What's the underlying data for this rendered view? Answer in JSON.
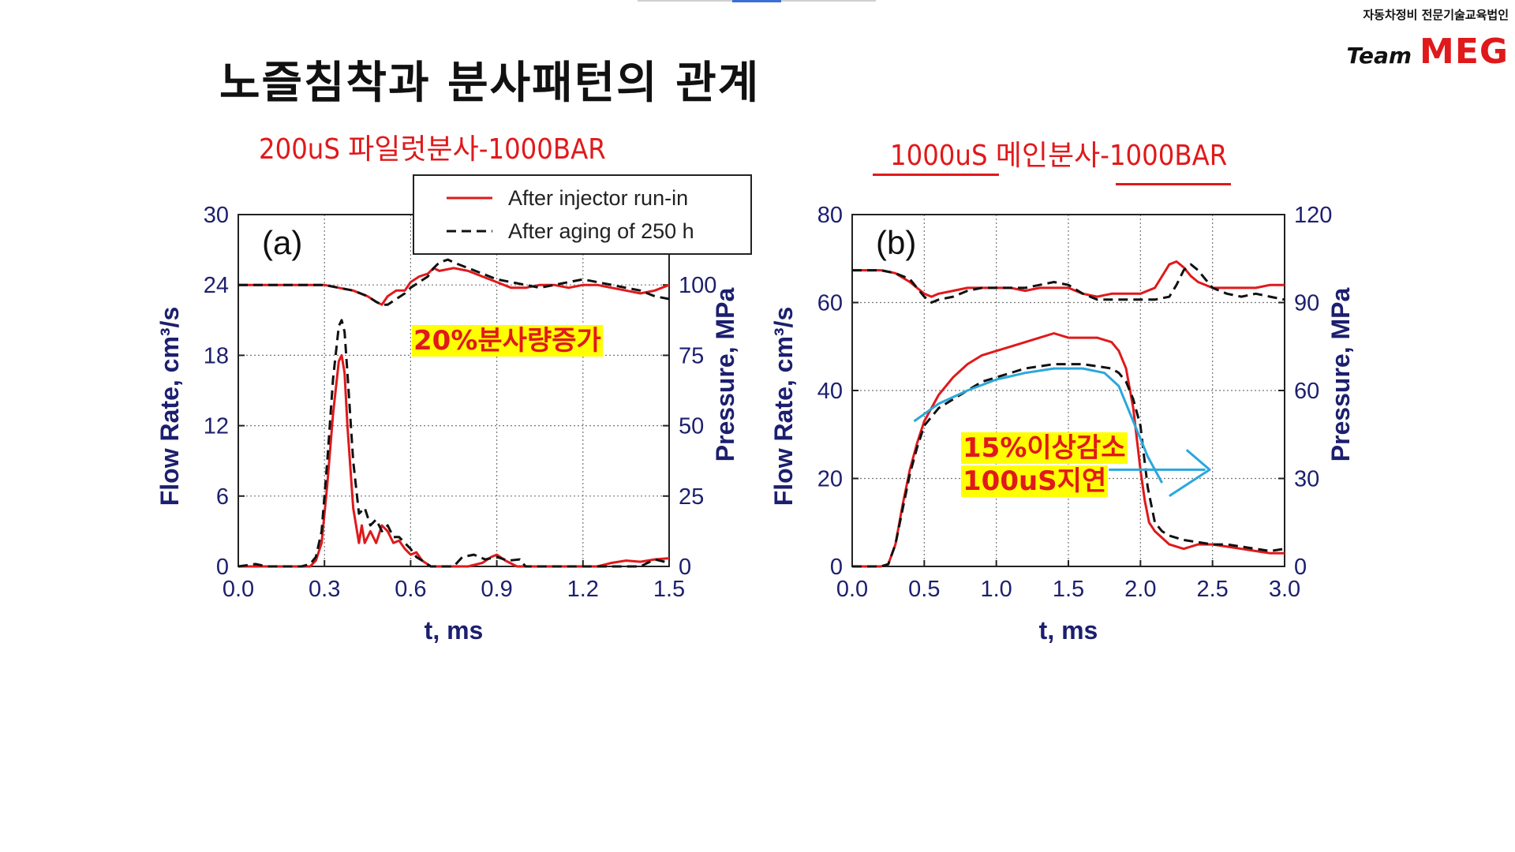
{
  "header": {
    "org": "자동차정비 전문기술교육법인",
    "logo_team": "Team",
    "logo_meg": "MEG",
    "title": "노즐침착과 분사패턴의 관계"
  },
  "subtitles": {
    "a": "200uS 파일럿분사-1000BAR",
    "b": "1000uS 메인분사-1000BAR"
  },
  "annotations": {
    "a": "20%분사량증가",
    "b_line1": "15%이상감소",
    "b_line2": "100uS지연"
  },
  "colors": {
    "red": "#e0191b",
    "black": "#111111",
    "navy": "#1c1f6e",
    "highlight": "#ffff00",
    "cyan": "#2aa7dc"
  },
  "chart_data": [
    {
      "type": "line",
      "panel_label": "(a)",
      "xlabel": "t, ms",
      "ylabel": "Flow Rate, cm³/s",
      "ylabel2": "Pressure, MPa",
      "xlim": [
        0,
        1.5
      ],
      "ylim": [
        0,
        30
      ],
      "y2lim": [
        0,
        125
      ],
      "xticks": [
        "0.0",
        "0.3",
        "0.6",
        "0.9",
        "1.2",
        "1.5"
      ],
      "yticks": [
        "0",
        "6",
        "12",
        "18",
        "24",
        "30"
      ],
      "y2ticks": [
        "0",
        "25",
        "50",
        "75",
        "100"
      ],
      "grid": true,
      "legend": {
        "placement": "top-right",
        "entries": [
          "After injector run-in",
          "After aging of 250 h"
        ]
      },
      "series": [
        {
          "name": "After injector run-in",
          "style": "solid",
          "color": "#e0191b",
          "kind": "flow",
          "x": [
            0.0,
            0.06,
            0.1,
            0.14,
            0.18,
            0.22,
            0.25,
            0.27,
            0.29,
            0.31,
            0.33,
            0.35,
            0.36,
            0.37,
            0.38,
            0.4,
            0.42,
            0.43,
            0.44,
            0.46,
            0.48,
            0.5,
            0.52,
            0.54,
            0.56,
            0.58,
            0.6,
            0.62,
            0.64,
            0.67,
            0.7,
            0.75,
            0.8,
            0.85,
            0.88,
            0.9,
            0.93,
            0.97,
            1.0,
            1.05,
            1.1,
            1.15,
            1.2,
            1.25,
            1.3,
            1.35,
            1.4,
            1.45,
            1.5
          ],
          "y": [
            0,
            0,
            0,
            0,
            0,
            0,
            0,
            0.5,
            2.0,
            7.0,
            13.0,
            17.5,
            18.0,
            16.5,
            12.0,
            5.0,
            2.0,
            3.5,
            2.0,
            3.0,
            2.0,
            3.5,
            3.0,
            2.0,
            2.2,
            1.5,
            1.0,
            1.2,
            0.5,
            0,
            0,
            0,
            0,
            0.3,
            0.8,
            1.0,
            0.5,
            0,
            0,
            0,
            0,
            0,
            0,
            0,
            0.3,
            0.5,
            0.4,
            0.6,
            0.7
          ]
        },
        {
          "name": "After aging of 250 h",
          "style": "dashed",
          "color": "#111111",
          "kind": "flow",
          "x": [
            0.0,
            0.06,
            0.1,
            0.14,
            0.18,
            0.22,
            0.25,
            0.27,
            0.29,
            0.31,
            0.33,
            0.35,
            0.36,
            0.37,
            0.38,
            0.4,
            0.42,
            0.44,
            0.46,
            0.48,
            0.5,
            0.52,
            0.54,
            0.56,
            0.58,
            0.6,
            0.62,
            0.64,
            0.67,
            0.7,
            0.75,
            0.78,
            0.82,
            0.86,
            0.9,
            0.94,
            0.98,
            1.0,
            1.05,
            1.1,
            1.2,
            1.3,
            1.4,
            1.45,
            1.5
          ],
          "y": [
            0,
            0.2,
            0,
            0,
            0,
            0,
            0.2,
            0.8,
            3.0,
            9.0,
            16.0,
            20.5,
            21.0,
            20.0,
            16.5,
            9.0,
            4.5,
            5.0,
            3.5,
            4.0,
            3.0,
            3.5,
            2.5,
            2.5,
            2.0,
            1.5,
            0.8,
            0.5,
            0,
            0,
            0,
            0.8,
            1.0,
            0.6,
            0.8,
            0.5,
            0.6,
            0,
            0,
            0,
            0,
            0,
            0,
            0.6,
            0.3
          ]
        },
        {
          "name": "After injector run-in",
          "style": "solid",
          "color": "#e0191b",
          "kind": "pressure",
          "x": [
            0.0,
            0.1,
            0.2,
            0.3,
            0.35,
            0.4,
            0.45,
            0.48,
            0.5,
            0.52,
            0.55,
            0.58,
            0.6,
            0.63,
            0.66,
            0.68,
            0.7,
            0.75,
            0.8,
            0.85,
            0.9,
            0.95,
            1.0,
            1.05,
            1.1,
            1.15,
            1.2,
            1.25,
            1.3,
            1.35,
            1.4,
            1.45,
            1.5
          ],
          "y": [
            100,
            100,
            100,
            100,
            99,
            98,
            96,
            94,
            93,
            96,
            98,
            98,
            101,
            103,
            104,
            106,
            105,
            106,
            105,
            103,
            101,
            99,
            99,
            100,
            100,
            99,
            100,
            100,
            99,
            98,
            97,
            98,
            100
          ]
        },
        {
          "name": "After aging of 250 h",
          "style": "dashed",
          "color": "#111111",
          "kind": "pressure",
          "x": [
            0.0,
            0.1,
            0.2,
            0.3,
            0.35,
            0.4,
            0.45,
            0.48,
            0.5,
            0.52,
            0.55,
            0.58,
            0.6,
            0.63,
            0.66,
            0.68,
            0.7,
            0.73,
            0.75,
            0.8,
            0.85,
            0.9,
            0.95,
            1.0,
            1.05,
            1.1,
            1.15,
            1.2,
            1.25,
            1.3,
            1.35,
            1.4,
            1.45,
            1.5
          ],
          "y": [
            100,
            100,
            100,
            100,
            99,
            98,
            96,
            94,
            93,
            93,
            95,
            97,
            99,
            101,
            103,
            106,
            108,
            109,
            108,
            106,
            104,
            102,
            101,
            100,
            99,
            100,
            101,
            102,
            101,
            100,
            99,
            98,
            96,
            95
          ]
        }
      ]
    },
    {
      "type": "line",
      "panel_label": "(b)",
      "xlabel": "t, ms",
      "ylabel": "Flow Rate, cm³/s",
      "ylabel2": "Pressure, MPa",
      "xlim": [
        0,
        3.0
      ],
      "ylim": [
        0,
        80
      ],
      "y2lim": [
        0,
        120
      ],
      "xticks": [
        "0.0",
        "0.5",
        "1.0",
        "1.5",
        "2.0",
        "2.5",
        "3.0"
      ],
      "yticks": [
        "0",
        "20",
        "40",
        "60",
        "80"
      ],
      "y2ticks": [
        "0",
        "30",
        "60",
        "90",
        "120"
      ],
      "grid": true,
      "series": [
        {
          "name": "After injector run-in",
          "style": "solid",
          "color": "#e0191b",
          "kind": "flow",
          "x": [
            0.0,
            0.1,
            0.2,
            0.25,
            0.3,
            0.35,
            0.4,
            0.45,
            0.5,
            0.6,
            0.7,
            0.8,
            0.9,
            1.0,
            1.1,
            1.2,
            1.3,
            1.4,
            1.5,
            1.6,
            1.7,
            1.8,
            1.85,
            1.9,
            1.95,
            2.0,
            2.03,
            2.06,
            2.1,
            2.2,
            2.3,
            2.4,
            2.5,
            2.6,
            2.7,
            2.8,
            2.9,
            3.0
          ],
          "y": [
            0,
            0,
            0,
            0.5,
            5,
            14,
            22,
            28,
            33,
            39,
            43,
            46,
            48,
            49,
            50,
            51,
            52,
            53,
            52,
            52,
            52,
            51,
            49,
            45,
            36,
            22,
            15,
            10,
            8,
            5,
            4,
            5,
            5,
            4.5,
            4,
            3.5,
            3,
            3
          ]
        },
        {
          "name": "After aging of 250 h",
          "style": "dashed",
          "color": "#111111",
          "kind": "flow",
          "x": [
            0.0,
            0.1,
            0.2,
            0.25,
            0.3,
            0.35,
            0.4,
            0.45,
            0.5,
            0.6,
            0.7,
            0.8,
            0.9,
            1.0,
            1.1,
            1.2,
            1.3,
            1.4,
            1.5,
            1.6,
            1.7,
            1.8,
            1.85,
            1.9,
            1.95,
            2.0,
            2.05,
            2.1,
            2.15,
            2.2,
            2.3,
            2.4,
            2.5,
            2.6,
            2.7,
            2.8,
            2.9,
            3.0
          ],
          "y": [
            0,
            0,
            0,
            0.5,
            5,
            13,
            21,
            27,
            32,
            36,
            38,
            40,
            42,
            43,
            44,
            45,
            45.5,
            46,
            46,
            46,
            45.5,
            45,
            44,
            42,
            38,
            32,
            18,
            10,
            8,
            7,
            6,
            5.5,
            5,
            5,
            4.5,
            4,
            3.5,
            4
          ]
        },
        {
          "name": "After injector run-in",
          "style": "solid",
          "color": "#e0191b",
          "kind": "pressure",
          "x": [
            0.0,
            0.2,
            0.3,
            0.4,
            0.5,
            0.55,
            0.6,
            0.7,
            0.8,
            0.9,
            1.0,
            1.1,
            1.2,
            1.3,
            1.4,
            1.5,
            1.6,
            1.7,
            1.8,
            1.9,
            2.0,
            2.1,
            2.15,
            2.2,
            2.25,
            2.3,
            2.35,
            2.4,
            2.5,
            2.6,
            2.7,
            2.8,
            2.9,
            3.0
          ],
          "y": [
            101,
            101,
            100,
            97,
            93,
            92,
            93,
            94,
            95,
            95,
            95,
            95,
            94,
            95,
            95,
            95,
            93,
            92,
            93,
            93,
            93,
            95,
            99,
            103,
            104,
            102,
            99,
            97,
            95,
            95,
            95,
            95,
            96,
            96
          ]
        },
        {
          "name": "After aging of 250 h",
          "style": "dashed",
          "color": "#111111",
          "kind": "pressure",
          "x": [
            0.0,
            0.2,
            0.3,
            0.4,
            0.5,
            0.55,
            0.6,
            0.7,
            0.8,
            0.9,
            1.0,
            1.1,
            1.2,
            1.3,
            1.4,
            1.5,
            1.6,
            1.7,
            1.8,
            1.9,
            2.0,
            2.1,
            2.2,
            2.25,
            2.3,
            2.35,
            2.4,
            2.45,
            2.5,
            2.6,
            2.7,
            2.8,
            2.9,
            3.0
          ],
          "y": [
            101,
            101,
            100,
            98,
            92,
            90,
            91,
            92,
            94,
            95,
            95,
            95,
            95,
            96,
            97,
            96,
            93,
            91,
            91,
            91,
            91,
            91,
            92,
            96,
            101,
            103,
            101,
            98,
            95,
            93,
            92,
            93,
            92,
            91
          ]
        }
      ]
    }
  ]
}
